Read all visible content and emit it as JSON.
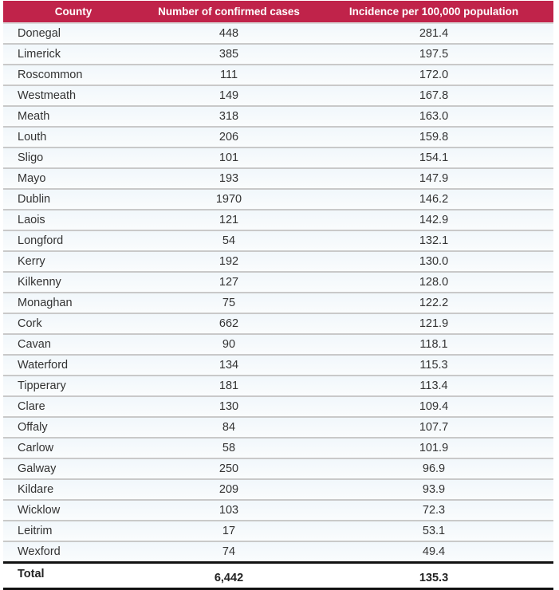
{
  "header": {
    "county": "County",
    "cases": "Number of confirmed cases",
    "incidence": "Incidence per 100,000 population"
  },
  "rows": [
    {
      "county": "Donegal",
      "cases": "448",
      "incidence": "281.4"
    },
    {
      "county": "Limerick",
      "cases": "385",
      "incidence": "197.5"
    },
    {
      "county": "Roscommon",
      "cases": "111",
      "incidence": "172.0"
    },
    {
      "county": "Westmeath",
      "cases": "149",
      "incidence": "167.8"
    },
    {
      "county": "Meath",
      "cases": "318",
      "incidence": "163.0"
    },
    {
      "county": "Louth",
      "cases": "206",
      "incidence": "159.8"
    },
    {
      "county": "Sligo",
      "cases": "101",
      "incidence": "154.1"
    },
    {
      "county": "Mayo",
      "cases": "193",
      "incidence": "147.9"
    },
    {
      "county": "Dublin",
      "cases": "1970",
      "incidence": "146.2"
    },
    {
      "county": "Laois",
      "cases": "121",
      "incidence": "142.9"
    },
    {
      "county": "Longford",
      "cases": "54",
      "incidence": "132.1"
    },
    {
      "county": "Kerry",
      "cases": "192",
      "incidence": "130.0"
    },
    {
      "county": "Kilkenny",
      "cases": "127",
      "incidence": "128.0"
    },
    {
      "county": "Monaghan",
      "cases": "75",
      "incidence": "122.2"
    },
    {
      "county": "Cork",
      "cases": "662",
      "incidence": "121.9"
    },
    {
      "county": "Cavan",
      "cases": "90",
      "incidence": "118.1"
    },
    {
      "county": "Waterford",
      "cases": "134",
      "incidence": "115.3"
    },
    {
      "county": "Tipperary",
      "cases": "181",
      "incidence": "113.4"
    },
    {
      "county": "Clare",
      "cases": "130",
      "incidence": "109.4"
    },
    {
      "county": "Offaly",
      "cases": "84",
      "incidence": "107.7"
    },
    {
      "county": "Carlow",
      "cases": "58",
      "incidence": "101.9"
    },
    {
      "county": "Galway",
      "cases": "250",
      "incidence": "96.9"
    },
    {
      "county": "Kildare",
      "cases": "209",
      "incidence": "93.9"
    },
    {
      "county": "Wicklow",
      "cases": "103",
      "incidence": "72.3"
    },
    {
      "county": "Leitrim",
      "cases": "17",
      "incidence": "53.1"
    },
    {
      "county": "Wexford",
      "cases": "74",
      "incidence": "49.4"
    }
  ],
  "total": {
    "label": "Total",
    "cases": "6,442",
    "incidence": "135.3"
  },
  "colors": {
    "header_bg": "#c0234a",
    "header_text": "#ffffff"
  }
}
